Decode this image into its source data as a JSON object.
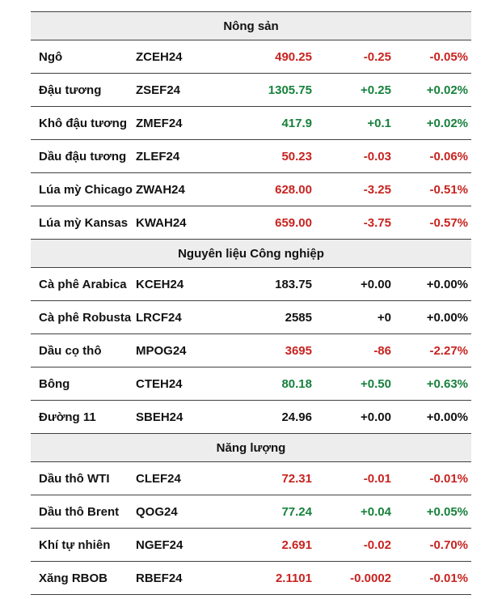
{
  "colors": {
    "up": "#17813c",
    "down": "#c8231f",
    "neutral": "#121212",
    "header_bg": "#ededed",
    "border": "#404040"
  },
  "chart_data": {
    "type": "table",
    "columns": [
      "name",
      "code",
      "price",
      "change",
      "percent"
    ],
    "sections": [
      {
        "title": "Nông sản",
        "rows": [
          {
            "name": "Ngô",
            "code": "ZCEH24",
            "price": "490.25",
            "change": "-0.25",
            "percent": "-0.05%",
            "trend": "down"
          },
          {
            "name": "Đậu tương",
            "code": "ZSEF24",
            "price": "1305.75",
            "change": "+0.25",
            "percent": "+0.02%",
            "trend": "up"
          },
          {
            "name": "Khô đậu tương",
            "code": "ZMEF24",
            "price": "417.9",
            "change": "+0.1",
            "percent": "+0.02%",
            "trend": "up"
          },
          {
            "name": "Dầu đậu tương",
            "code": "ZLEF24",
            "price": "50.23",
            "change": "-0.03",
            "percent": "-0.06%",
            "trend": "down"
          },
          {
            "name": "Lúa mỳ Chicago",
            "code": "ZWAH24",
            "price": "628.00",
            "change": "-3.25",
            "percent": "-0.51%",
            "trend": "down"
          },
          {
            "name": "Lúa mỳ Kansas",
            "code": "KWAH24",
            "price": "659.00",
            "change": "-3.75",
            "percent": "-0.57%",
            "trend": "down"
          }
        ]
      },
      {
        "title": "Nguyên liệu Công nghiệp",
        "rows": [
          {
            "name": "Cà phê Arabica",
            "code": "KCEH24",
            "price": "183.75",
            "change": "+0.00",
            "percent": "+0.00%",
            "trend": "flat"
          },
          {
            "name": "Cà phê Robusta",
            "code": "LRCF24",
            "price": "2585",
            "change": "+0",
            "percent": "+0.00%",
            "trend": "flat"
          },
          {
            "name": "Dầu cọ thô",
            "code": "MPOG24",
            "price": "3695",
            "change": "-86",
            "percent": "-2.27%",
            "trend": "down"
          },
          {
            "name": "Bông",
            "code": "CTEH24",
            "price": "80.18",
            "change": "+0.50",
            "percent": "+0.63%",
            "trend": "up"
          },
          {
            "name": "Đường 11",
            "code": "SBEH24",
            "price": "24.96",
            "change": "+0.00",
            "percent": "+0.00%",
            "trend": "flat"
          }
        ]
      },
      {
        "title": "Năng lượng",
        "rows": [
          {
            "name": "Dầu thô WTI",
            "code": "CLEF24",
            "price": "72.31",
            "change": "-0.01",
            "percent": "-0.01%",
            "trend": "down"
          },
          {
            "name": "Dầu thô Brent",
            "code": "QOG24",
            "price": "77.24",
            "change": "+0.04",
            "percent": "+0.05%",
            "trend": "up"
          },
          {
            "name": "Khí tự nhiên",
            "code": "NGEF24",
            "price": "2.691",
            "change": "-0.02",
            "percent": "-0.70%",
            "trend": "down"
          },
          {
            "name": "Xăng RBOB",
            "code": "RBEF24",
            "price": "2.1101",
            "change": "-0.0002",
            "percent": "-0.01%",
            "trend": "down"
          }
        ]
      }
    ]
  }
}
